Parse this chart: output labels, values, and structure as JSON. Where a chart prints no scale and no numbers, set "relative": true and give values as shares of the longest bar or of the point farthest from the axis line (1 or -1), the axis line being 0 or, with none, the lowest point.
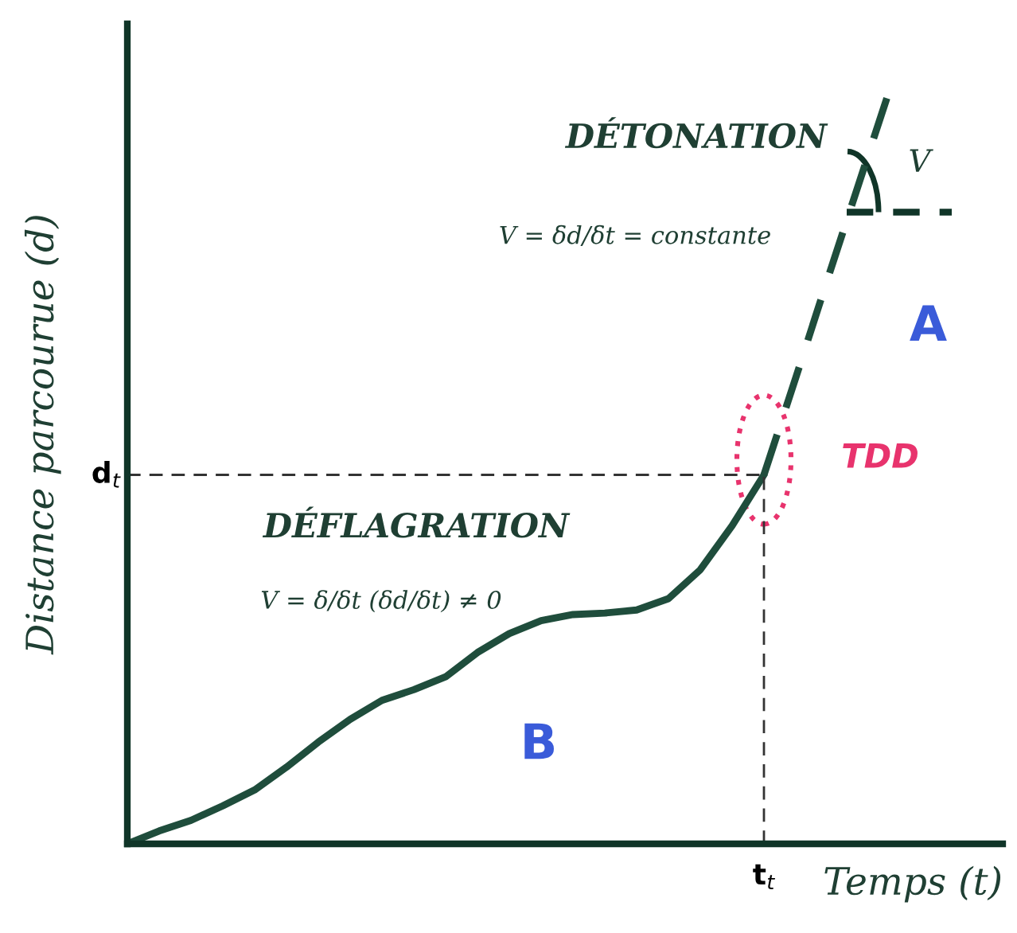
{
  "chart_data": {
    "type": "line",
    "relative": true,
    "xlabel": "Temps (t)",
    "ylabel": "Distance parcourue (d)",
    "categories": [
      null,
      null,
      null,
      null,
      null,
      null,
      null,
      null,
      null,
      null,
      null,
      null,
      null,
      null,
      null,
      null,
      null,
      null,
      null,
      null,
      null,
      null,
      null,
      null,
      null
    ],
    "series": [
      {
        "color": "#1f4d3c",
        "line_style": "solid",
        "values": [
          0,
          0.017,
          0.031,
          0.05,
          0.071,
          0.101,
          0.134,
          0.164,
          0.189,
          0.203,
          0.22,
          0.252,
          0.277,
          0.294,
          0.302,
          0.304,
          0.308,
          0.323,
          0.361,
          0.419,
          0.486,
          null,
          null,
          null,
          null
        ]
      },
      {
        "color": "#1f4d3c",
        "line_style": "dashed",
        "values": [
          null,
          null,
          null,
          null,
          null,
          null,
          null,
          null,
          null,
          null,
          null,
          null,
          null,
          null,
          null,
          null,
          null,
          null,
          null,
          null,
          0.486,
          0.614,
          0.744,
          0.872,
          1.0
        ]
      }
    ],
    "ref_lines": [
      {
        "axis": "y",
        "value": 0.486,
        "label": "d$_{t}$",
        "line_style": "dashed",
        "color": "#333333"
      }
    ],
    "annotations": [
      "t$_{t}$",
      "DÉTONATION",
      "V = δd/δt = constante",
      "A",
      "TDD",
      "DÉFLAGRATION",
      "V = δ/δt (δd/δt) ≠ 0",
      "B",
      "V"
    ],
    "grid": false,
    "legend": false,
    "marker": "none"
  }
}
